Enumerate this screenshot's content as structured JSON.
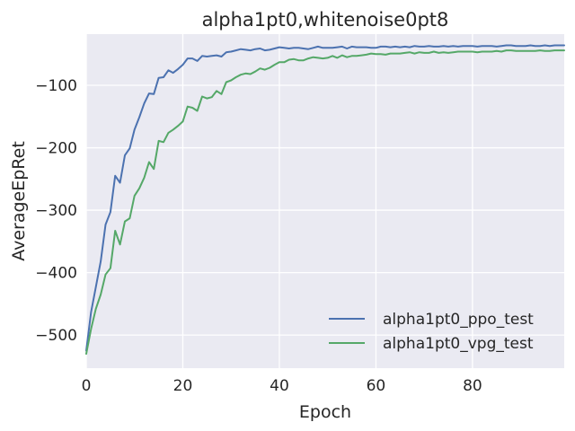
{
  "chart_data": {
    "type": "line",
    "title": "alpha1pt0,whitenoise0pt8",
    "xlabel": "Epoch",
    "ylabel": "AverageEpRet",
    "xlim": [
      0,
      99
    ],
    "ylim": [
      -553,
      -18
    ],
    "xticks": [
      0,
      20,
      40,
      60,
      80
    ],
    "xtick_labels": [
      "0",
      "20",
      "40",
      "60",
      "80"
    ],
    "yticks": [
      -500,
      -400,
      -300,
      -200,
      -100
    ],
    "ytick_labels": [
      "−500",
      "−400",
      "−300",
      "−200",
      "−100"
    ],
    "grid": true,
    "legend_position": "lower-right",
    "colors": {
      "background": "#EAEAF2",
      "grid": "#FFFFFF"
    },
    "series": [
      {
        "name": "alpha1pt0_ppo_test",
        "color": "#4C72B0",
        "x": [
          0,
          1,
          2,
          3,
          4,
          5,
          6,
          7,
          8,
          9,
          10,
          11,
          12,
          13,
          14,
          15,
          16,
          17,
          18,
          19,
          20,
          21,
          22,
          23,
          24,
          25,
          26,
          27,
          28,
          29,
          30,
          31,
          32,
          33,
          34,
          35,
          36,
          37,
          38,
          39,
          40,
          41,
          42,
          43,
          44,
          45,
          46,
          47,
          48,
          49,
          50,
          51,
          52,
          53,
          54,
          55,
          56,
          57,
          58,
          59,
          60,
          61,
          62,
          63,
          64,
          65,
          66,
          67,
          68,
          69,
          70,
          71,
          72,
          73,
          74,
          75,
          76,
          77,
          78,
          79,
          80,
          81,
          82,
          83,
          84,
          85,
          86,
          87,
          88,
          89,
          90,
          91,
          92,
          93,
          94,
          95,
          96,
          97,
          98,
          99
        ],
        "values": [
          -525,
          -463,
          -423,
          -382,
          -323,
          -303,
          -245,
          -256,
          -212,
          -201,
          -171,
          -151,
          -129,
          -113,
          -114,
          -88,
          -87,
          -76,
          -80,
          -74,
          -67,
          -57,
          -57,
          -61,
          -53,
          -54,
          -53,
          -52,
          -54,
          -47,
          -46,
          -44,
          -42,
          -43,
          -44,
          -42,
          -41,
          -44,
          -43,
          -41,
          -39,
          -40,
          -41,
          -40,
          -40,
          -41,
          -42,
          -40,
          -38,
          -40,
          -40,
          -40,
          -39,
          -38,
          -41,
          -38,
          -39,
          -39,
          -39,
          -40,
          -40,
          -38,
          -38,
          -39,
          -38,
          -39,
          -38,
          -39,
          -37,
          -38,
          -38,
          -37,
          -38,
          -38,
          -37,
          -38,
          -37,
          -38,
          -37,
          -37,
          -37,
          -38,
          -37,
          -37,
          -37,
          -38,
          -37,
          -36,
          -36,
          -37,
          -37,
          -37,
          -36,
          -37,
          -37,
          -36,
          -37,
          -36,
          -36,
          -36
        ]
      },
      {
        "name": "alpha1pt0_vpg_test",
        "color": "#55A868",
        "x": [
          0,
          1,
          2,
          3,
          4,
          5,
          6,
          7,
          8,
          9,
          10,
          11,
          12,
          13,
          14,
          15,
          16,
          17,
          18,
          19,
          20,
          21,
          22,
          23,
          24,
          25,
          26,
          27,
          28,
          29,
          30,
          31,
          32,
          33,
          34,
          35,
          36,
          37,
          38,
          39,
          40,
          41,
          42,
          43,
          44,
          45,
          46,
          47,
          48,
          49,
          50,
          51,
          52,
          53,
          54,
          55,
          56,
          57,
          58,
          59,
          60,
          61,
          62,
          63,
          64,
          65,
          66,
          67,
          68,
          69,
          70,
          71,
          72,
          73,
          74,
          75,
          76,
          77,
          78,
          79,
          80,
          81,
          82,
          83,
          84,
          85,
          86,
          87,
          88,
          89,
          90,
          91,
          92,
          93,
          94,
          95,
          96,
          97,
          98,
          99
        ],
        "values": [
          -530,
          -490,
          -458,
          -435,
          -403,
          -393,
          -333,
          -355,
          -318,
          -313,
          -277,
          -265,
          -248,
          -223,
          -234,
          -189,
          -191,
          -176,
          -171,
          -165,
          -158,
          -134,
          -136,
          -141,
          -118,
          -121,
          -119,
          -109,
          -114,
          -95,
          -92,
          -87,
          -83,
          -81,
          -82,
          -78,
          -73,
          -75,
          -72,
          -67,
          -63,
          -63,
          -59,
          -58,
          -60,
          -60,
          -57,
          -55,
          -56,
          -57,
          -56,
          -53,
          -56,
          -52,
          -55,
          -53,
          -53,
          -52,
          -51,
          -49,
          -50,
          -50,
          -51,
          -49,
          -49,
          -49,
          -48,
          -47,
          -49,
          -47,
          -48,
          -48,
          -46,
          -48,
          -47,
          -48,
          -47,
          -46,
          -46,
          -46,
          -46,
          -47,
          -46,
          -46,
          -46,
          -45,
          -46,
          -44,
          -44,
          -45,
          -45,
          -45,
          -45,
          -45,
          -44,
          -45,
          -45,
          -44,
          -44,
          -44
        ]
      }
    ]
  }
}
